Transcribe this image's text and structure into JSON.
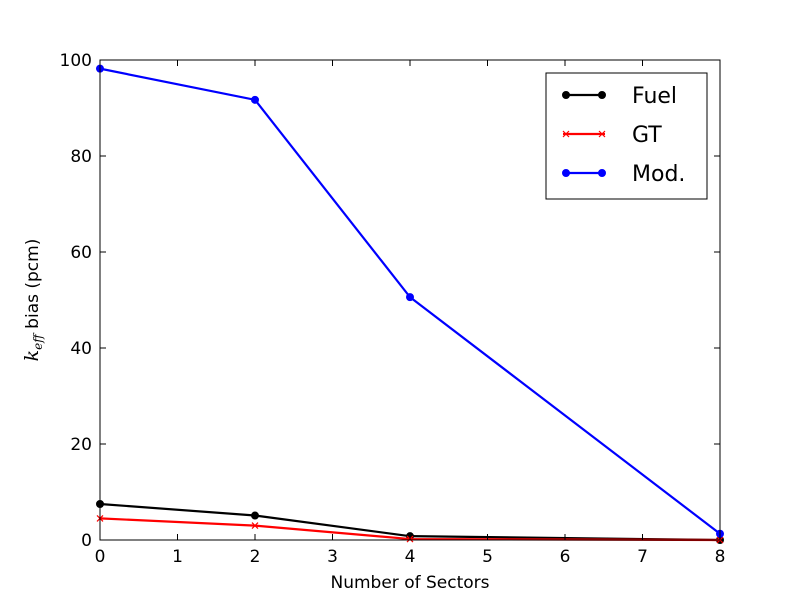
{
  "chart_data": {
    "type": "line",
    "xlabel": "Number of Sectors",
    "ylabel_math": "k",
    "ylabel_sub": "eff",
    "ylabel_rest": " bias (pcm)",
    "xlim": [
      0,
      8
    ],
    "ylim": [
      0,
      100
    ],
    "xticks": [
      "0",
      "1",
      "2",
      "3",
      "4",
      "5",
      "6",
      "7",
      "8"
    ],
    "yticks": [
      "0",
      "20",
      "40",
      "60",
      "80",
      "100"
    ],
    "legend_position": "top-right",
    "grid": false,
    "series": [
      {
        "name": "Fuel",
        "color": "#000000",
        "marker": "circle",
        "x": [
          0,
          2,
          4,
          8
        ],
        "y": [
          7.5,
          5.1,
          0.8,
          0.0
        ]
      },
      {
        "name": "GT",
        "color": "#ff0000",
        "marker": "x",
        "x": [
          0,
          2,
          4,
          8
        ],
        "y": [
          4.5,
          3.0,
          0.2,
          0.0
        ]
      },
      {
        "name": "Mod.",
        "color": "#0000ff",
        "marker": "circle",
        "x": [
          0,
          2,
          4,
          8
        ],
        "y": [
          98.2,
          91.7,
          50.6,
          1.3
        ]
      }
    ]
  }
}
